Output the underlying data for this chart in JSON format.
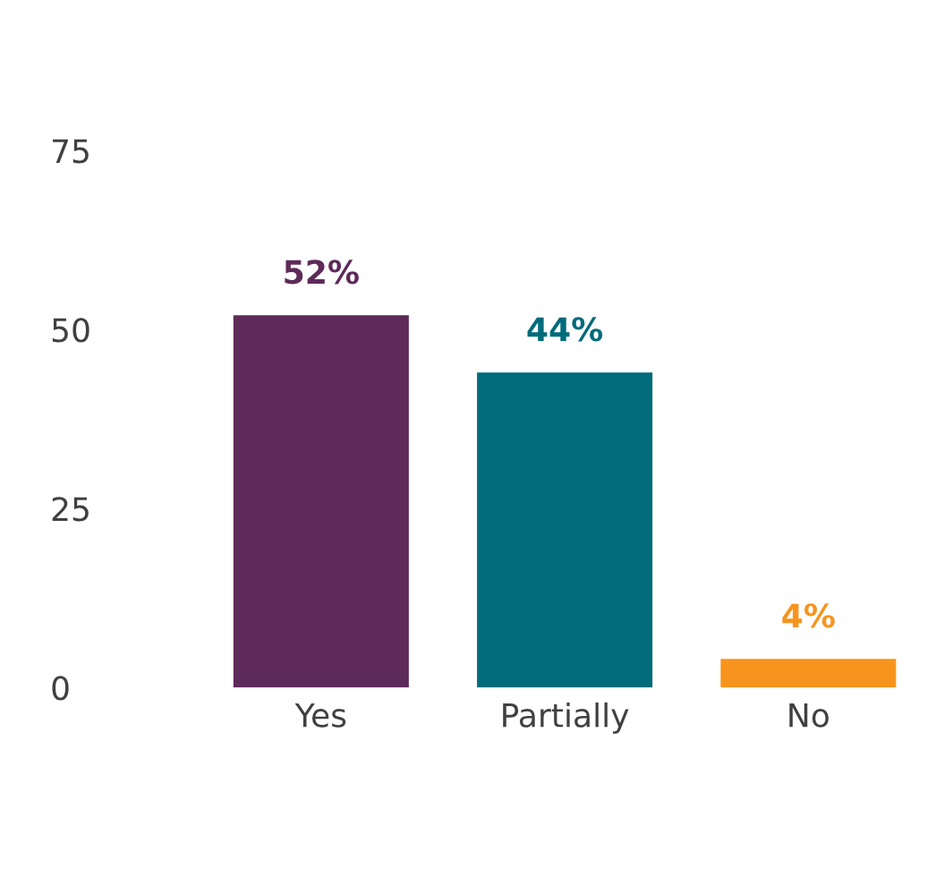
{
  "chart_data": {
    "type": "bar",
    "categories": [
      "Yes",
      "Partially",
      "No"
    ],
    "values": [
      52,
      44,
      4
    ],
    "colors": [
      "#5e2a5a",
      "#006b7a",
      "#f7941d"
    ],
    "value_labels": [
      "52%",
      "44%",
      "4%"
    ],
    "ylim": [
      0,
      75
    ],
    "yticks": [
      0,
      25,
      50,
      75
    ],
    "grid": false
  }
}
